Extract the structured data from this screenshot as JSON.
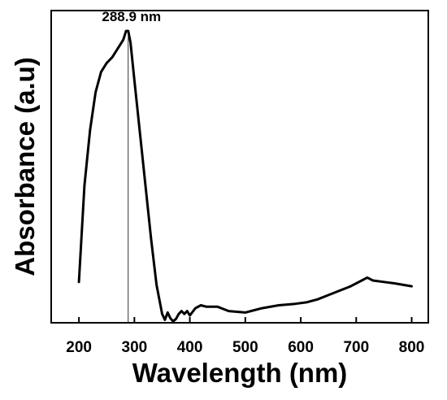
{
  "chart_data": {
    "type": "line",
    "xlabel": "Wavelength (nm)",
    "ylabel": "Absorbance (a.u)",
    "xlim": [
      150,
      830
    ],
    "ylim": [
      0,
      1.07
    ],
    "x_ticks": [
      200,
      300,
      400,
      500,
      600,
      700,
      800
    ],
    "y_ticks_shown": false,
    "grid": false,
    "legend": "none",
    "line_color": "#000000",
    "annotation": {
      "text": "288.9 nm",
      "x": 288.9,
      "marker": "vertical-line"
    },
    "series": [
      {
        "x": [
          200,
          210,
          220,
          230,
          240,
          250,
          260,
          270,
          280,
          285,
          288.9,
          293,
          300,
          310,
          320,
          330,
          340,
          350,
          355,
          360,
          365,
          370,
          375,
          380,
          385,
          390,
          395,
          400,
          410,
          420,
          430,
          450,
          470,
          500,
          530,
          560,
          590,
          610,
          630,
          650,
          670,
          690,
          710,
          720,
          730,
          750,
          770,
          800
        ],
        "values": [
          0.14,
          0.47,
          0.66,
          0.79,
          0.86,
          0.89,
          0.91,
          0.94,
          0.97,
          1.0,
          1.0,
          0.96,
          0.83,
          0.65,
          0.47,
          0.29,
          0.13,
          0.03,
          0.01,
          0.035,
          0.015,
          0.005,
          0.013,
          0.03,
          0.04,
          0.03,
          0.04,
          0.025,
          0.05,
          0.06,
          0.055,
          0.055,
          0.04,
          0.035,
          0.05,
          0.06,
          0.065,
          0.07,
          0.08,
          0.095,
          0.11,
          0.125,
          0.145,
          0.155,
          0.145,
          0.14,
          0.135,
          0.125
        ]
      }
    ]
  }
}
